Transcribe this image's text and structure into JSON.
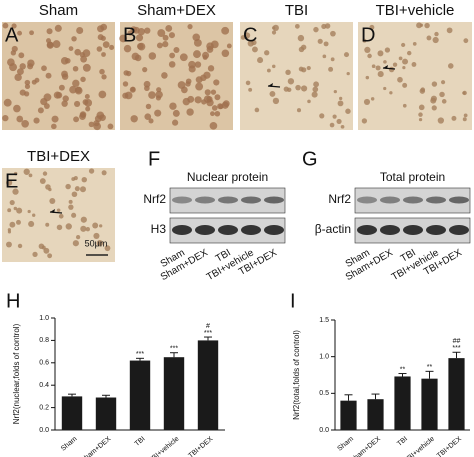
{
  "panels": {
    "micrographs": [
      {
        "letter": "A",
        "title": "Sham"
      },
      {
        "letter": "B",
        "title": "Sham+DEX"
      },
      {
        "letter": "C",
        "title": "TBI"
      },
      {
        "letter": "D",
        "title": "TBI+vehicle"
      },
      {
        "letter": "E",
        "title": "TBI+DEX"
      }
    ],
    "scale_bar": "50μm",
    "blots": [
      {
        "letter": "F",
        "title": "Nuclear protein",
        "rows": [
          "Nrf2",
          "H3"
        ],
        "lanes": [
          "Sham",
          "Sham+DEX",
          "TBI",
          "TBI+vehicle",
          "TBI+DEX"
        ]
      },
      {
        "letter": "G",
        "title": "Total protein",
        "rows": [
          "Nrf2",
          "β-actin"
        ],
        "lanes": [
          "Sham",
          "Sham+DEX",
          "TBI",
          "TBI+vehicle",
          "TBI+DEX"
        ]
      }
    ],
    "chart_letters": [
      "H",
      "I"
    ]
  },
  "chart_data": [
    {
      "type": "bar",
      "y_label": "Nrf2(nuclear,folds of control)",
      "categories": [
        "Sham",
        "Sham+DEX",
        "TBI",
        "TBI+vehicle",
        "TBI+DEX"
      ],
      "values": [
        0.3,
        0.29,
        0.62,
        0.65,
        0.8
      ],
      "errors": [
        0.02,
        0.02,
        0.02,
        0.04,
        0.03
      ],
      "annotations": [
        null,
        null,
        [
          "***"
        ],
        [
          "***"
        ],
        [
          "#",
          "***"
        ]
      ],
      "color": "#1a1a1a",
      "ylim": [
        0,
        1.0
      ],
      "yticks": [
        {
          "value": 0,
          "label": "0.0"
        },
        {
          "value": 0.2,
          "label": "0.2"
        },
        {
          "value": 0.4,
          "label": "0.4"
        },
        {
          "value": 0.6,
          "label": "0.6"
        },
        {
          "value": 0.8,
          "label": "0.8"
        },
        {
          "value": 1.0,
          "label": "1.0"
        }
      ]
    },
    {
      "type": "bar",
      "y_label": "Nrf2(total,folds of control)",
      "categories": [
        "Sham",
        "Sham+DEX",
        "TBI",
        "TBI+vehicle",
        "TBI+DEX"
      ],
      "values": [
        0.4,
        0.42,
        0.73,
        0.7,
        0.98
      ],
      "errors": [
        0.08,
        0.07,
        0.04,
        0.1,
        0.08
      ],
      "annotations": [
        null,
        null,
        [
          "**"
        ],
        [
          "**"
        ],
        [
          "##",
          "***"
        ]
      ],
      "color": "#1a1a1a",
      "ylim": [
        0,
        1.5
      ],
      "yticks": [
        {
          "value": 0,
          "label": "0.0"
        },
        {
          "value": 0.5,
          "label": "0.5"
        },
        {
          "value": 1.0,
          "label": "1.0"
        },
        {
          "value": 1.5,
          "label": "1.5"
        }
      ]
    }
  ]
}
